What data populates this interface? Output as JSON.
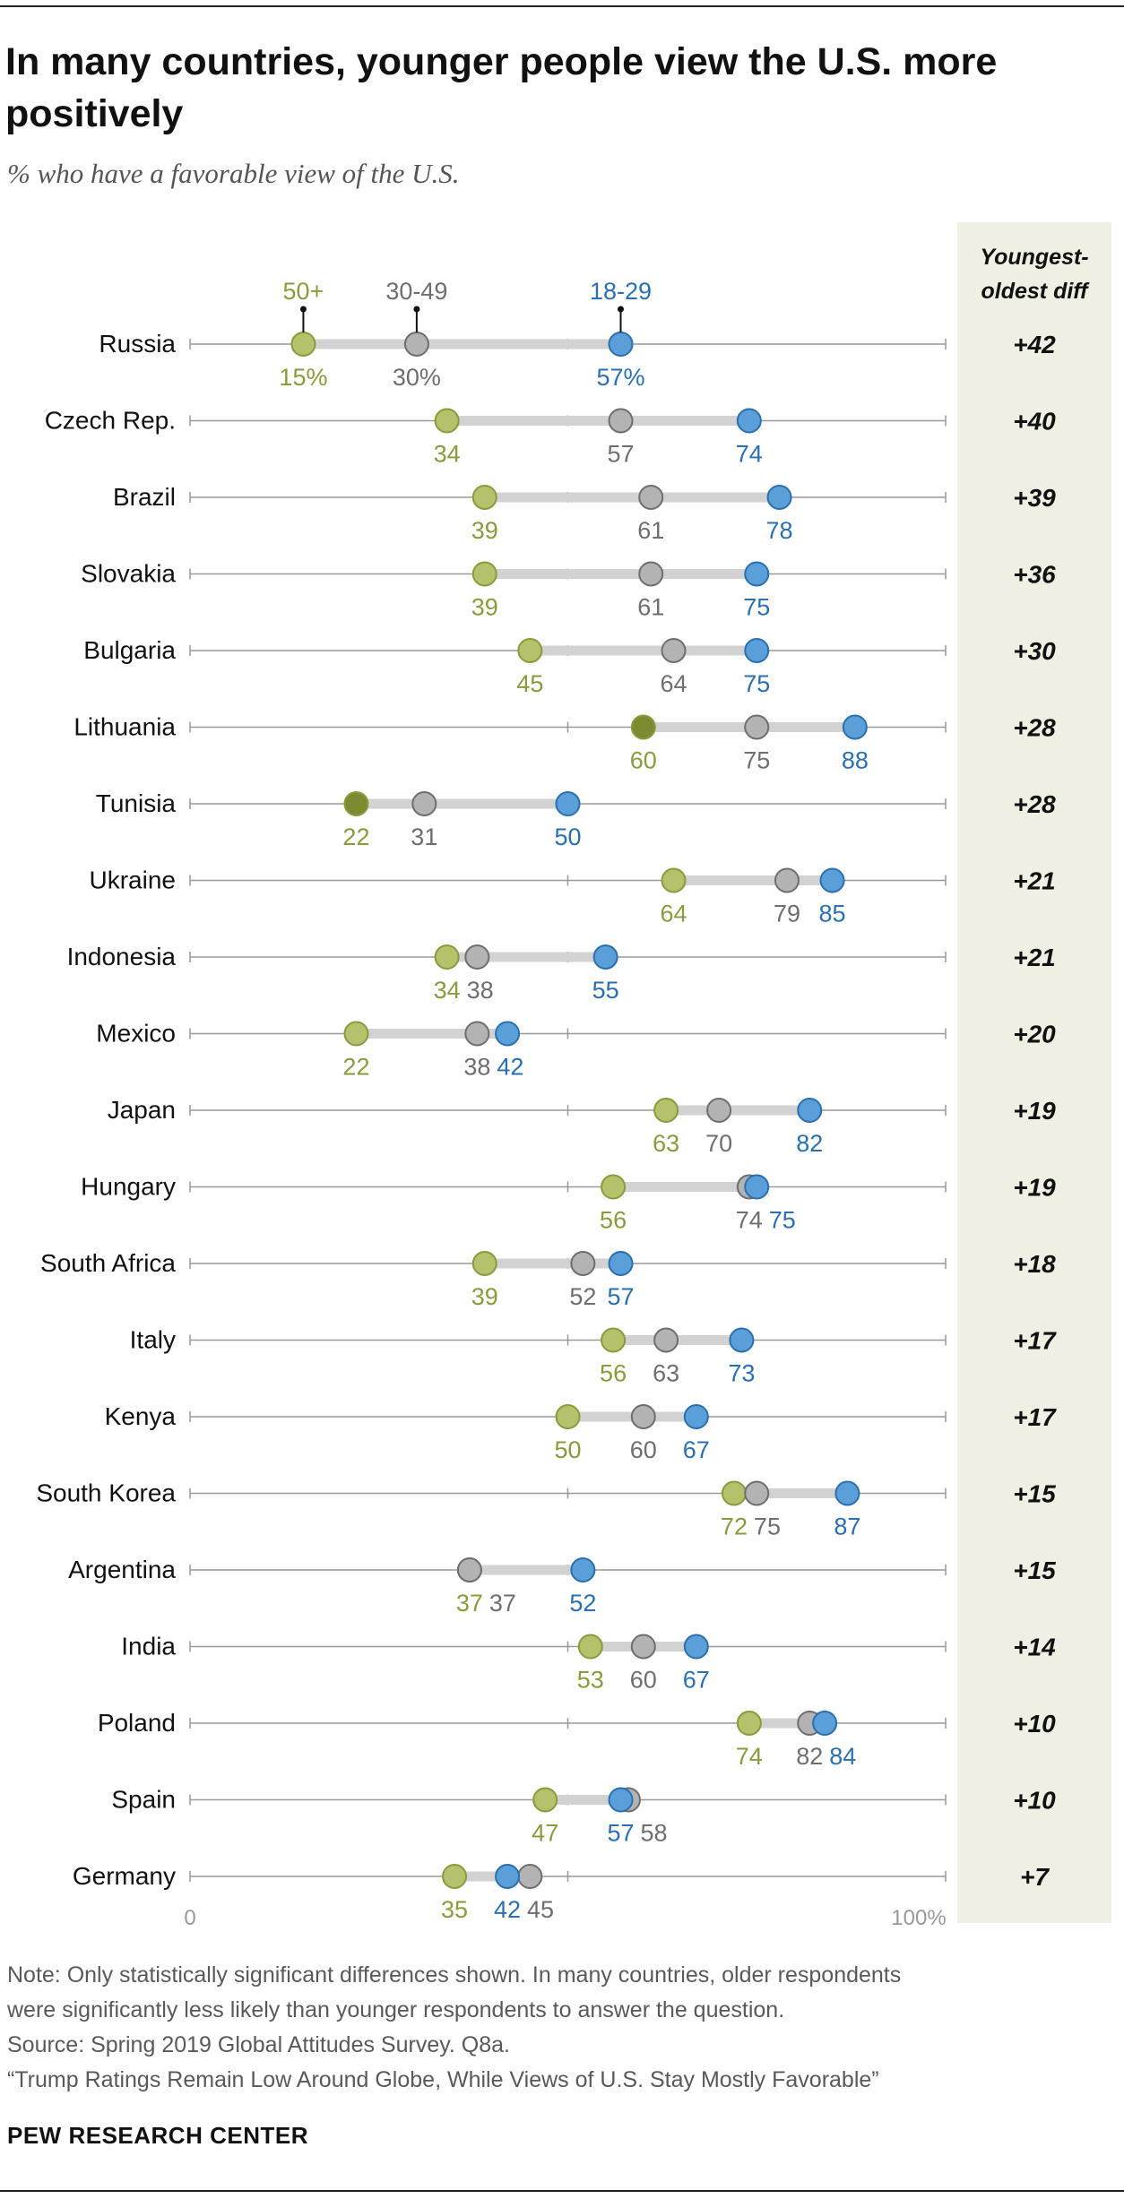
{
  "header": {
    "title": "In many countries, younger people view the U.S. more positively",
    "subtitle": "% who have a favorable view of the U.S."
  },
  "colors": {
    "old": "#b5c26b",
    "old_label": "#8a9a3c",
    "old_significant": "#7c8b30",
    "mid": "#b3b3b3",
    "mid_label": "#6e6e6e",
    "young": "#5a9fd8",
    "young_label": "#2a6fb0",
    "connector": "#d2d2d2",
    "axis": "#999999",
    "diff_bg": "#efefe3"
  },
  "diff_header": [
    "Youngest-",
    "oldest diff"
  ],
  "chart_data": {
    "type": "dot",
    "xlim": [
      0,
      100
    ],
    "x_tick_labels": [
      "0",
      "100%"
    ],
    "series": [
      {
        "name": "50+",
        "key": "old"
      },
      {
        "name": "30-49",
        "key": "mid"
      },
      {
        "name": "18-29",
        "key": "young"
      }
    ],
    "rows": [
      {
        "country": "Russia",
        "old": 15,
        "mid": 30,
        "young": 57,
        "diff": "+42",
        "old_label": "15%",
        "mid_label": "30%",
        "young_label": "57%"
      },
      {
        "country": "Czech Rep.",
        "old": 34,
        "mid": 57,
        "young": 74,
        "diff": "+40"
      },
      {
        "country": "Brazil",
        "old": 39,
        "mid": 61,
        "young": 78,
        "diff": "+39"
      },
      {
        "country": "Slovakia",
        "old": 39,
        "mid": 61,
        "young": 75,
        "diff": "+36"
      },
      {
        "country": "Bulgaria",
        "old": 45,
        "mid": 64,
        "young": 75,
        "diff": "+30"
      },
      {
        "country": "Lithuania",
        "old": 60,
        "mid": 75,
        "young": 88,
        "diff": "+28",
        "old_sig": true
      },
      {
        "country": "Tunisia",
        "old": 22,
        "mid": 31,
        "young": 50,
        "diff": "+28",
        "old_sig": true
      },
      {
        "country": "Ukraine",
        "old": 64,
        "mid": 79,
        "young": 85,
        "diff": "+21"
      },
      {
        "country": "Indonesia",
        "old": 34,
        "mid": 38,
        "young": 55,
        "diff": "+21"
      },
      {
        "country": "Mexico",
        "old": 22,
        "mid": 38,
        "young": 42,
        "diff": "+20"
      },
      {
        "country": "Japan",
        "old": 63,
        "mid": 70,
        "young": 82,
        "diff": "+19"
      },
      {
        "country": "Hungary",
        "old": 56,
        "mid": 74,
        "young": 75,
        "diff": "+19"
      },
      {
        "country": "South Africa",
        "old": 39,
        "mid": 52,
        "young": 57,
        "diff": "+18"
      },
      {
        "country": "Italy",
        "old": 56,
        "mid": 63,
        "young": 73,
        "diff": "+17"
      },
      {
        "country": "Kenya",
        "old": 50,
        "mid": 60,
        "young": 67,
        "diff": "+17"
      },
      {
        "country": "South Korea",
        "old": 72,
        "mid": 75,
        "young": 87,
        "diff": "+15"
      },
      {
        "country": "Argentina",
        "old": 37,
        "mid": 37,
        "young": 52,
        "diff": "+15"
      },
      {
        "country": "India",
        "old": 53,
        "mid": 60,
        "young": 67,
        "diff": "+14"
      },
      {
        "country": "Poland",
        "old": 74,
        "mid": 82,
        "young": 84,
        "diff": "+10"
      },
      {
        "country": "Spain",
        "old": 47,
        "mid": 58,
        "young": 57,
        "diff": "+10"
      },
      {
        "country": "Germany",
        "old": 35,
        "mid": 45,
        "young": 42,
        "diff": "+7"
      }
    ]
  },
  "notes": [
    "Note: Only statistically significant differences shown. In many countries, older respondents",
    "were significantly less likely than younger respondents to answer the question.",
    "Source: Spring 2019 Global Attitudes Survey. Q8a.",
    "“Trump Ratings Remain Low Around Globe, While Views of U.S. Stay Mostly Favorable”"
  ],
  "brand": "PEW RESEARCH CENTER"
}
